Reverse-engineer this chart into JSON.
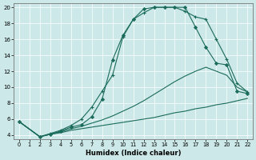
{
  "xlabel": "Humidex (Indice chaleur)",
  "bg_color": "#cce8e8",
  "grid_color": "#ffffff",
  "line_color": "#1a6b5a",
  "xlim": [
    -0.5,
    22.5
  ],
  "ylim": [
    3.5,
    20.5
  ],
  "xticks": [
    0,
    1,
    2,
    3,
    4,
    5,
    6,
    7,
    8,
    9,
    10,
    11,
    12,
    13,
    14,
    15,
    16,
    17,
    18,
    19,
    20,
    21,
    22
  ],
  "yticks": [
    4,
    6,
    8,
    10,
    12,
    14,
    16,
    18,
    20
  ],
  "line1_x": [
    0,
    2,
    3,
    4,
    5,
    6,
    7,
    8,
    9,
    10,
    11,
    12,
    13,
    14,
    15,
    16,
    17,
    18,
    19,
    20,
    21,
    22
  ],
  "line1_y": [
    5.7,
    3.8,
    4.1,
    4.3,
    4.6,
    4.8,
    5.0,
    5.2,
    5.4,
    5.6,
    5.8,
    6.0,
    6.2,
    6.5,
    6.8,
    7.0,
    7.3,
    7.5,
    7.8,
    8.0,
    8.3,
    8.6
  ],
  "line2_x": [
    0,
    2,
    3,
    4,
    5,
    6,
    7,
    8,
    9,
    10,
    11,
    12,
    13,
    14,
    15,
    16,
    17,
    18,
    19,
    20,
    21,
    22
  ],
  "line2_y": [
    5.7,
    3.8,
    4.1,
    4.4,
    4.8,
    5.1,
    5.5,
    5.9,
    6.4,
    7.0,
    7.6,
    8.3,
    9.1,
    9.9,
    10.7,
    11.4,
    12.0,
    12.5,
    12.0,
    11.5,
    10.0,
    9.4
  ],
  "line3_x": [
    0,
    2,
    3,
    4,
    5,
    6,
    7,
    8,
    9,
    10,
    11,
    12,
    13,
    14,
    15,
    16,
    17,
    18,
    19,
    20,
    21,
    22
  ],
  "line3_y": [
    5.7,
    3.8,
    4.2,
    4.6,
    5.2,
    6.0,
    7.5,
    9.5,
    11.5,
    16.3,
    18.5,
    19.3,
    20.0,
    20.0,
    20.0,
    19.5,
    18.8,
    18.5,
    16.0,
    13.5,
    10.5,
    9.4
  ],
  "line4_x": [
    0,
    2,
    3,
    4,
    5,
    6,
    7,
    8,
    9,
    10,
    11,
    12,
    13,
    14,
    15,
    16,
    17,
    18,
    19,
    20,
    21,
    22
  ],
  "line4_y": [
    5.7,
    3.8,
    4.1,
    4.5,
    5.0,
    5.3,
    6.3,
    8.5,
    13.4,
    16.5,
    18.5,
    19.8,
    20.0,
    20.0,
    20.0,
    20.0,
    17.5,
    15.0,
    13.0,
    12.8,
    9.5,
    9.2
  ],
  "line1_marker": null,
  "line2_marker": null,
  "line3_marker": "plus",
  "line4_marker": "diamond"
}
